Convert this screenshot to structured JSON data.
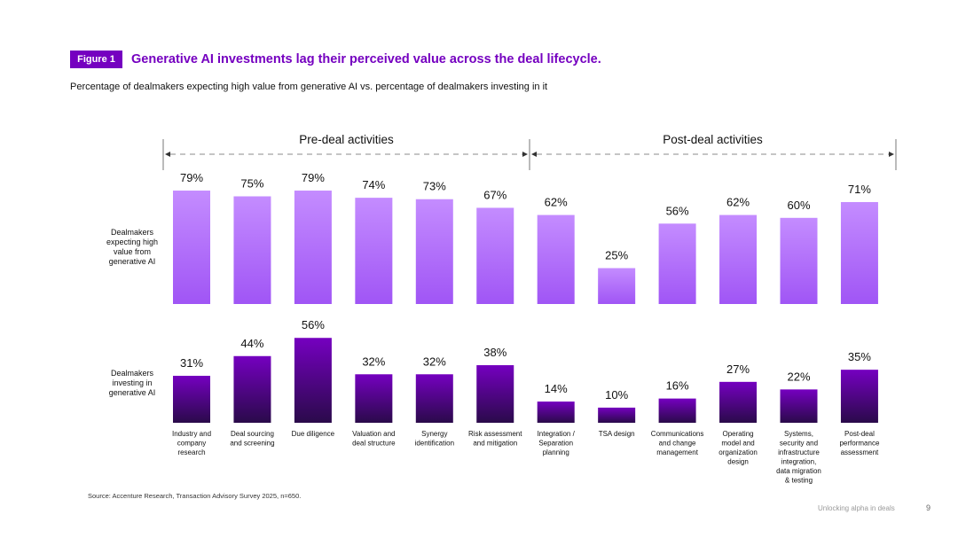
{
  "figure": {
    "badge": "Figure 1",
    "title": "Generative AI investments lag their perceived value across the deal lifecycle.",
    "subtitle": "Percentage of dealmakers expecting high value from generative AI vs. percentage of dealmakers investing in it"
  },
  "sections": [
    {
      "label": "Pre-deal activities"
    },
    {
      "label": "Post-deal activities"
    }
  ],
  "chart_data": {
    "type": "bar",
    "title": "Generative AI investments lag their perceived value across the deal lifecycle.",
    "categories": [
      [
        "Industry and",
        "company",
        "research"
      ],
      [
        "Deal sourcing",
        "and screening"
      ],
      [
        "Due diligence"
      ],
      [
        "Valuation and",
        "deal structure"
      ],
      [
        "Synergy",
        "identification"
      ],
      [
        "Risk assessment",
        "and mitigation"
      ],
      [
        "Integration /",
        "Separation",
        "planning"
      ],
      [
        "TSA design"
      ],
      [
        "Communications",
        "and change",
        "management"
      ],
      [
        "Operating",
        "model and",
        "organization",
        "design"
      ],
      [
        "Systems,",
        "security and",
        "infrastructure",
        "integration,",
        "data migration",
        "& testing"
      ],
      [
        "Post-deal",
        "performance",
        "assessment"
      ]
    ],
    "series": [
      {
        "name_lines": [
          "Dealmakers",
          "expecting high",
          "value from",
          "generative AI"
        ],
        "values": [
          79,
          75,
          79,
          74,
          73,
          67,
          62,
          25,
          56,
          62,
          60,
          71
        ],
        "unit": "%",
        "color_top": "#c48cff",
        "color_bottom": "#a055f5"
      },
      {
        "name_lines": [
          "Dealmakers",
          "investing in",
          "generative AI"
        ],
        "values": [
          31,
          44,
          56,
          32,
          32,
          38,
          14,
          10,
          16,
          27,
          22,
          35
        ],
        "unit": "%",
        "color_top": "#7500c0",
        "color_bottom": "#2a0a4a"
      }
    ],
    "ylim": [
      0,
      100
    ],
    "grid": false,
    "legend": "left"
  },
  "source": "Source: Accenture Research, Transaction Advisory Survey 2025, n=650.",
  "footer": {
    "text": "Unlocking alpha in deals",
    "page": "9"
  }
}
